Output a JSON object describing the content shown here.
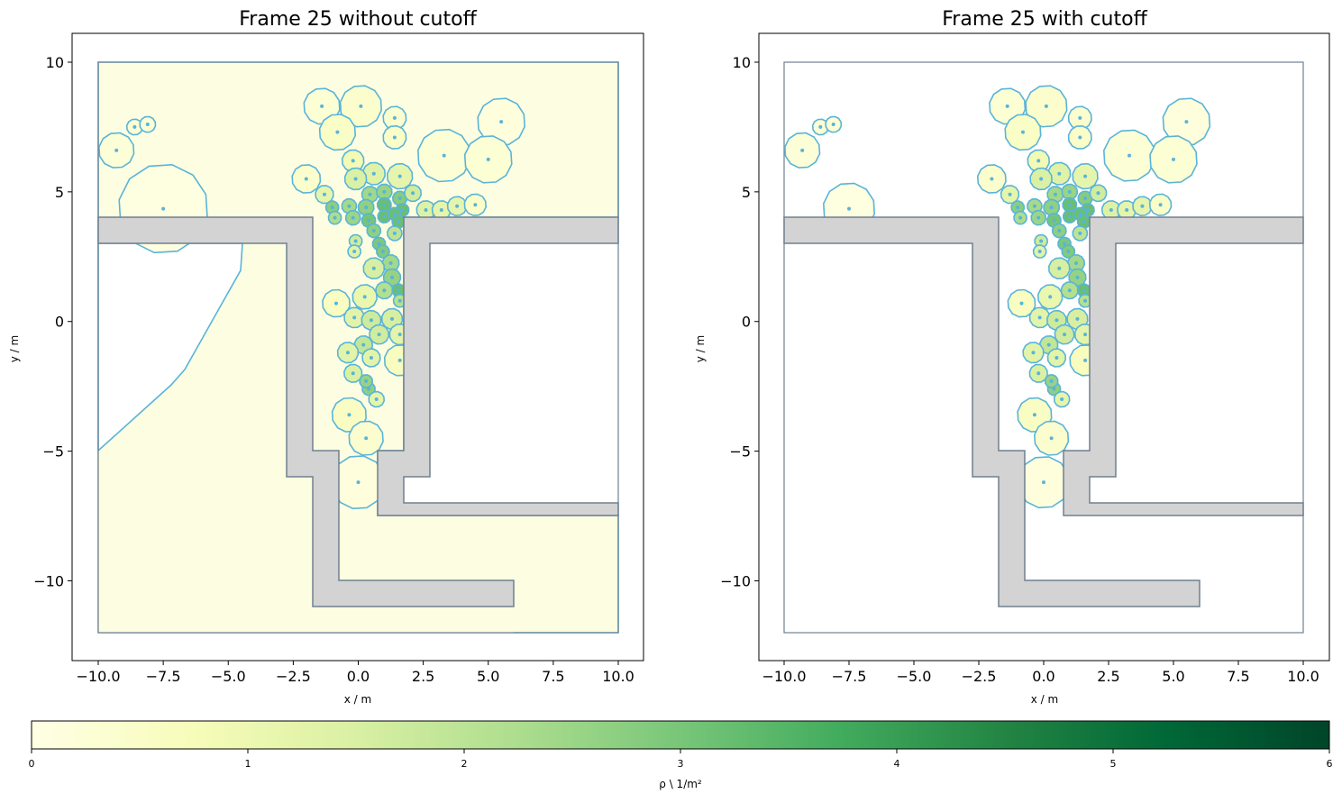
{
  "chart_data": [
    {
      "type": "voronoi-density",
      "title": "Frame 25 without cutoff",
      "xlabel": "x / m",
      "ylabel": "y / m",
      "xlim": [
        -11,
        11
      ],
      "ylim": [
        -13,
        11
      ],
      "xticks": [
        "−10.0",
        "−7.5",
        "−5.0",
        "−2.5",
        "0.0",
        "2.5",
        "5.0",
        "7.5",
        "10.0"
      ],
      "yticks": [
        "−10",
        "−5",
        "0",
        "5",
        "10"
      ],
      "cutoff": false
    },
    {
      "type": "voronoi-density",
      "title": "Frame 25 with cutoff",
      "xlabel": "x / m",
      "ylabel": "y / m",
      "xlim": [
        -11,
        11
      ],
      "ylim": [
        -13,
        11
      ],
      "xticks": [
        "−10.0",
        "−7.5",
        "−5.0",
        "−2.5",
        "0.0",
        "2.5",
        "5.0",
        "7.5",
        "10.0"
      ],
      "yticks": [
        "−10",
        "−5",
        "0",
        "5",
        "10"
      ],
      "cutoff": true,
      "cutoff_radius": 1.0
    }
  ],
  "pedestrians": [
    [
      -9.3,
      6.6
    ],
    [
      -8.6,
      7.5
    ],
    [
      -8.1,
      7.6
    ],
    [
      -7.5,
      4.35
    ],
    [
      -2.0,
      5.5
    ],
    [
      -1.4,
      8.3
    ],
    [
      0.1,
      8.3
    ],
    [
      -0.8,
      7.3
    ],
    [
      1.4,
      7.85
    ],
    [
      1.4,
      7.1
    ],
    [
      3.3,
      6.4
    ],
    [
      5.5,
      7.7
    ],
    [
      5.0,
      6.25
    ],
    [
      -0.2,
      6.2
    ],
    [
      0.6,
      5.7
    ],
    [
      1.6,
      5.6
    ],
    [
      -1.3,
      4.9
    ],
    [
      -0.1,
      5.5
    ],
    [
      0.45,
      4.9
    ],
    [
      1.0,
      5.0
    ],
    [
      1.6,
      4.75
    ],
    [
      2.1,
      4.95
    ],
    [
      0.3,
      4.4
    ],
    [
      1.0,
      4.5
    ],
    [
      1.7,
      4.3
    ],
    [
      2.6,
      4.3
    ],
    [
      3.2,
      4.3
    ],
    [
      3.8,
      4.45
    ],
    [
      4.5,
      4.5
    ],
    [
      -1.0,
      4.4
    ],
    [
      -0.35,
      4.45
    ],
    [
      -0.9,
      4.0
    ],
    [
      -0.2,
      4.0
    ],
    [
      0.4,
      3.9
    ],
    [
      1.0,
      4.05
    ],
    [
      1.4,
      4.15
    ],
    [
      1.55,
      3.85
    ],
    [
      -0.1,
      3.1
    ],
    [
      0.6,
      3.5
    ],
    [
      1.4,
      3.4
    ],
    [
      0.8,
      3.0
    ],
    [
      -0.15,
      2.7
    ],
    [
      0.95,
      2.7
    ],
    [
      1.25,
      2.25
    ],
    [
      0.6,
      2.05
    ],
    [
      1.3,
      1.7
    ],
    [
      -0.85,
      0.7
    ],
    [
      0.25,
      0.95
    ],
    [
      1.0,
      1.2
    ],
    [
      1.55,
      1.2
    ],
    [
      1.6,
      0.8
    ],
    [
      -0.15,
      0.15
    ],
    [
      0.5,
      0.05
    ],
    [
      1.3,
      0.1
    ],
    [
      1.6,
      -0.5
    ],
    [
      0.8,
      -0.5
    ],
    [
      0.2,
      -0.9
    ],
    [
      -0.4,
      -1.2
    ],
    [
      0.5,
      -1.4
    ],
    [
      1.6,
      -1.5
    ],
    [
      -0.2,
      -2.0
    ],
    [
      0.4,
      -2.6
    ],
    [
      0.7,
      -3.0
    ],
    [
      0.3,
      -2.3
    ],
    [
      -0.35,
      -3.6
    ],
    [
      0.3,
      -4.5
    ],
    [
      0.0,
      -6.2
    ]
  ],
  "colorbar": {
    "label": "ρ \\ 1/m²",
    "min": 0,
    "max": 6,
    "ticks": [
      "0",
      "1",
      "2",
      "3",
      "4",
      "5",
      "6"
    ],
    "colormap": "YlGn"
  },
  "colors": {
    "cell_edge": "#5ab4d8",
    "geometry_edge": "#708090",
    "obstacle_fill": "#d3d3d3",
    "background": "#ffffff"
  }
}
